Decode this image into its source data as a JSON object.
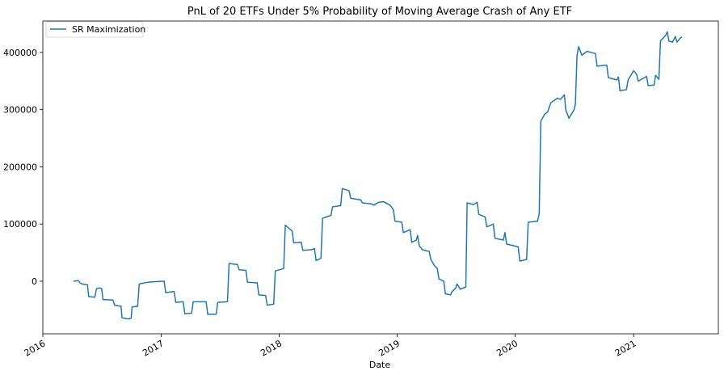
{
  "chart_data": {
    "type": "line",
    "title": "PnL of 20 ETFs Under 5% Probability of Moving Average Crash of Any ETF",
    "xlabel": "Date",
    "ylabel": "",
    "xlim": [
      "2016-01-01",
      "2021-09-20"
    ],
    "ylim": [
      -92000,
      455000
    ],
    "grid": false,
    "legend_position": "top-left",
    "colors": {
      "series": "#1f77b4"
    },
    "x_ticks": [
      {
        "date": "2016-01-01",
        "label": "2016"
      },
      {
        "date": "2017-01-01",
        "label": "2017"
      },
      {
        "date": "2018-01-01",
        "label": "2018"
      },
      {
        "date": "2019-01-01",
        "label": "2019"
      },
      {
        "date": "2020-01-01",
        "label": "2020"
      },
      {
        "date": "2021-01-01",
        "label": "2021"
      }
    ],
    "y_ticks": [
      {
        "value": 0,
        "label": "0"
      },
      {
        "value": 100000,
        "label": "100000"
      },
      {
        "value": 200000,
        "label": "200000"
      },
      {
        "value": 300000,
        "label": "300000"
      },
      {
        "value": 400000,
        "label": "400000"
      }
    ],
    "series": [
      {
        "name": "SR Maximization",
        "points": [
          [
            "2016-04-05",
            0
          ],
          [
            "2016-04-20",
            1000
          ],
          [
            "2016-04-25",
            -3000
          ],
          [
            "2016-05-01",
            -5000
          ],
          [
            "2016-05-18",
            -6000
          ],
          [
            "2016-05-22",
            -27000
          ],
          [
            "2016-06-10",
            -28000
          ],
          [
            "2016-06-15",
            -13000
          ],
          [
            "2016-06-25",
            -12000
          ],
          [
            "2016-07-01",
            -13000
          ],
          [
            "2016-07-05",
            -32000
          ],
          [
            "2016-08-05",
            -33000
          ],
          [
            "2016-08-10",
            -42000
          ],
          [
            "2016-08-30",
            -44000
          ],
          [
            "2016-09-02",
            -64000
          ],
          [
            "2016-09-20",
            -66000
          ],
          [
            "2016-09-30",
            -65000
          ],
          [
            "2016-10-03",
            -45000
          ],
          [
            "2016-10-20",
            -44000
          ],
          [
            "2016-10-25",
            -5000
          ],
          [
            "2016-11-20",
            -2000
          ],
          [
            "2016-12-10",
            -1000
          ],
          [
            "2017-01-10",
            0
          ],
          [
            "2017-01-15",
            -20000
          ],
          [
            "2017-02-10",
            -18000
          ],
          [
            "2017-02-15",
            -37000
          ],
          [
            "2017-03-10",
            -36000
          ],
          [
            "2017-03-15",
            -57000
          ],
          [
            "2017-04-05",
            -56000
          ],
          [
            "2017-04-10",
            -36000
          ],
          [
            "2017-05-20",
            -36000
          ],
          [
            "2017-05-25",
            -58000
          ],
          [
            "2017-06-20",
            -58000
          ],
          [
            "2017-06-25",
            -37000
          ],
          [
            "2017-07-25",
            -36000
          ],
          [
            "2017-07-30",
            31000
          ],
          [
            "2017-08-25",
            29000
          ],
          [
            "2017-08-30",
            20000
          ],
          [
            "2017-09-20",
            19000
          ],
          [
            "2017-09-25",
            -2000
          ],
          [
            "2017-10-25",
            -3000
          ],
          [
            "2017-10-30",
            -24000
          ],
          [
            "2017-11-20",
            -25000
          ],
          [
            "2017-11-25",
            -42000
          ],
          [
            "2017-12-15",
            -40000
          ],
          [
            "2017-12-20",
            18000
          ],
          [
            "2018-01-15",
            22000
          ],
          [
            "2018-01-20",
            98000
          ],
          [
            "2018-02-01",
            92000
          ],
          [
            "2018-02-10",
            88000
          ],
          [
            "2018-02-15",
            67000
          ],
          [
            "2018-03-10",
            68000
          ],
          [
            "2018-03-15",
            54000
          ],
          [
            "2018-04-10",
            55000
          ],
          [
            "2018-04-20",
            57000
          ],
          [
            "2018-04-25",
            36000
          ],
          [
            "2018-05-10",
            40000
          ],
          [
            "2018-05-15",
            110000
          ],
          [
            "2018-06-10",
            115000
          ],
          [
            "2018-06-15",
            130000
          ],
          [
            "2018-07-10",
            132000
          ],
          [
            "2018-07-15",
            162000
          ],
          [
            "2018-08-05",
            158000
          ],
          [
            "2018-08-10",
            145000
          ],
          [
            "2018-09-10",
            142000
          ],
          [
            "2018-09-15",
            137000
          ],
          [
            "2018-10-15",
            135000
          ],
          [
            "2018-10-20",
            133000
          ],
          [
            "2018-11-05",
            138000
          ],
          [
            "2018-11-20",
            139000
          ],
          [
            "2018-12-10",
            133000
          ],
          [
            "2018-12-20",
            125000
          ],
          [
            "2018-12-25",
            105000
          ],
          [
            "2019-01-15",
            103000
          ],
          [
            "2019-01-20",
            85000
          ],
          [
            "2019-02-10",
            90000
          ],
          [
            "2019-02-15",
            68000
          ],
          [
            "2019-03-01",
            72000
          ],
          [
            "2019-03-05",
            80000
          ],
          [
            "2019-03-10",
            62000
          ],
          [
            "2019-03-20",
            55000
          ],
          [
            "2019-04-10",
            52000
          ],
          [
            "2019-04-15",
            38000
          ],
          [
            "2019-04-25",
            28000
          ],
          [
            "2019-05-05",
            22000
          ],
          [
            "2019-05-10",
            4000
          ],
          [
            "2019-05-25",
            0
          ],
          [
            "2019-05-30",
            -22000
          ],
          [
            "2019-06-15",
            -24000
          ],
          [
            "2019-06-20",
            -18000
          ],
          [
            "2019-07-01",
            -12000
          ],
          [
            "2019-07-05",
            -5000
          ],
          [
            "2019-07-15",
            -14000
          ],
          [
            "2019-08-01",
            -10000
          ],
          [
            "2019-08-05",
            137000
          ],
          [
            "2019-08-25",
            134000
          ],
          [
            "2019-09-05",
            138000
          ],
          [
            "2019-09-10",
            117000
          ],
          [
            "2019-09-30",
            112000
          ],
          [
            "2019-10-05",
            95000
          ],
          [
            "2019-10-25",
            100000
          ],
          [
            "2019-10-30",
            75000
          ],
          [
            "2019-11-25",
            72000
          ],
          [
            "2019-11-30",
            85000
          ],
          [
            "2019-12-05",
            65000
          ],
          [
            "2020-01-10",
            60000
          ],
          [
            "2020-01-15",
            35000
          ],
          [
            "2020-02-05",
            38000
          ],
          [
            "2020-02-10",
            103000
          ],
          [
            "2020-03-10",
            105000
          ],
          [
            "2020-03-15",
            118000
          ],
          [
            "2020-03-20",
            280000
          ],
          [
            "2020-04-01",
            292000
          ],
          [
            "2020-04-10",
            296000
          ],
          [
            "2020-04-20",
            312000
          ],
          [
            "2020-05-10",
            320000
          ],
          [
            "2020-05-20",
            318000
          ],
          [
            "2020-06-01",
            326000
          ],
          [
            "2020-06-05",
            300000
          ],
          [
            "2020-06-15",
            285000
          ],
          [
            "2020-07-01",
            300000
          ],
          [
            "2020-07-05",
            310000
          ],
          [
            "2020-07-10",
            395000
          ],
          [
            "2020-07-15",
            410000
          ],
          [
            "2020-07-25",
            395000
          ],
          [
            "2020-08-10",
            402000
          ],
          [
            "2020-09-05",
            398000
          ],
          [
            "2020-09-10",
            376000
          ],
          [
            "2020-10-10",
            378000
          ],
          [
            "2020-10-15",
            356000
          ],
          [
            "2020-11-10",
            352000
          ],
          [
            "2020-11-15",
            357000
          ],
          [
            "2020-11-20",
            333000
          ],
          [
            "2020-12-10",
            335000
          ],
          [
            "2020-12-15",
            352000
          ],
          [
            "2021-01-01",
            368000
          ],
          [
            "2021-01-10",
            362000
          ],
          [
            "2021-01-15",
            350000
          ],
          [
            "2021-02-10",
            358000
          ],
          [
            "2021-02-15",
            342000
          ],
          [
            "2021-03-05",
            343000
          ],
          [
            "2021-03-10",
            360000
          ],
          [
            "2021-03-20",
            353000
          ],
          [
            "2021-03-25",
            420000
          ],
          [
            "2021-04-10",
            430000
          ],
          [
            "2021-04-15",
            436000
          ],
          [
            "2021-04-20",
            420000
          ],
          [
            "2021-05-01",
            418000
          ],
          [
            "2021-05-10",
            428000
          ],
          [
            "2021-05-15",
            418000
          ],
          [
            "2021-05-25",
            425000
          ],
          [
            "2021-05-30",
            427000
          ]
        ]
      }
    ]
  }
}
